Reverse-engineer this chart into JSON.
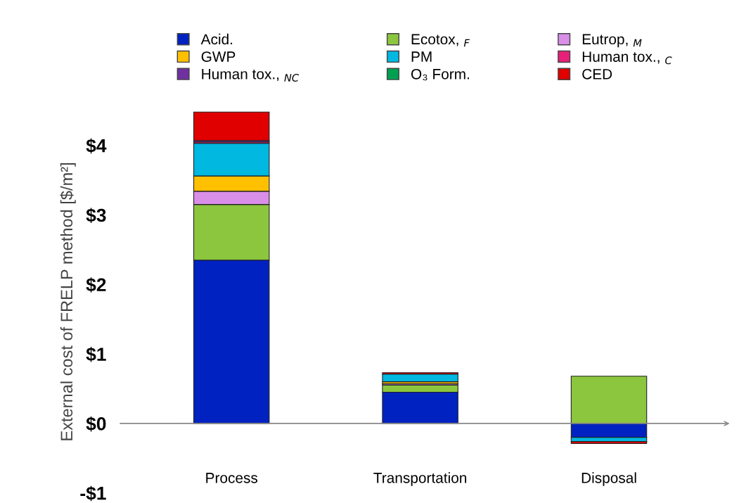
{
  "chart_data": {
    "type": "bar",
    "stacked": true,
    "ylabel": "External cost of FRELP method [$/m²]",
    "categories": [
      "Process",
      "Transportation",
      "Disposal"
    ],
    "ylim": [
      -1,
      4.5
    ],
    "yticks": [
      {
        "value": -1,
        "label": "-$1"
      },
      {
        "value": 0,
        "label": "$0"
      },
      {
        "value": 1,
        "label": "$1"
      },
      {
        "value": 2,
        "label": "$2"
      },
      {
        "value": 3,
        "label": "$3"
      },
      {
        "value": 4,
        "label": "$4"
      }
    ],
    "legend": "top",
    "grid": false,
    "series": [
      {
        "name": "Acid.",
        "color": "#0022c0",
        "values": [
          2.35,
          0.45,
          -0.2
        ]
      },
      {
        "name": "Ecotox, $_{F}$",
        "color": "#8cc63f",
        "values": [
          0.8,
          0.1,
          0.68
        ]
      },
      {
        "name": "Eutrop, $_{M}$",
        "color": "#d98ee8",
        "values": [
          0.19,
          0.02,
          null
        ]
      },
      {
        "name": "GWP",
        "color": "#ffc000",
        "values": [
          0.22,
          0.03,
          null
        ]
      },
      {
        "name": "PM",
        "color": "#00b8e0",
        "values": [
          0.47,
          0.11,
          -0.06
        ]
      },
      {
        "name": "Human tox., $_{C}$",
        "color": "#e8207a",
        "values": [
          0.02,
          null,
          null
        ]
      },
      {
        "name": "Human tox., $_{NC}$",
        "color": "#7030a0",
        "values": [
          0.02,
          null,
          null
        ]
      },
      {
        "name": "O₃ Form.",
        "color": "#00a050",
        "values": [
          null,
          null,
          null
        ]
      },
      {
        "name": "CED",
        "color": "#e00000",
        "values": [
          0.41,
          0.02,
          -0.03
        ]
      }
    ]
  }
}
